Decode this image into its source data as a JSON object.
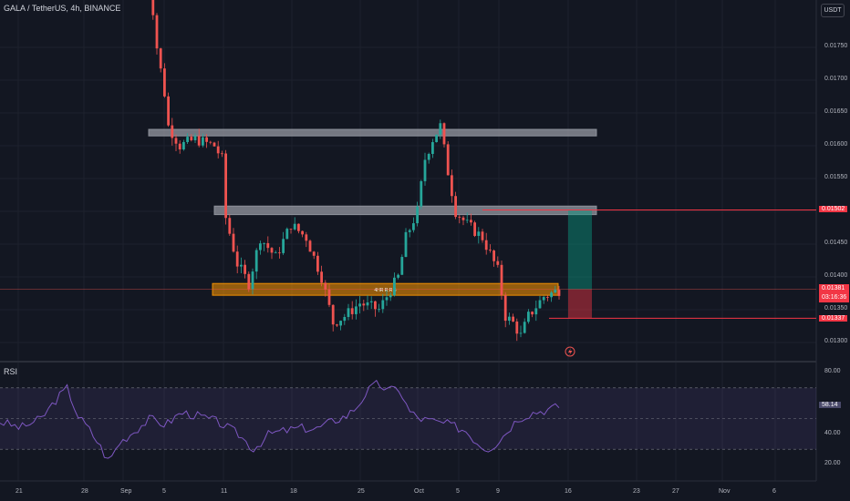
{
  "symbol": {
    "title": "GALA / TetherUS, 4h, BINANCE"
  },
  "quote_currency": "USDT",
  "indicator": {
    "name": "RSI"
  },
  "zone_label": "4HR R:R 5",
  "price_axis": {
    "ticks": [
      "0.01750",
      "0.01700",
      "0.01650",
      "0.01600",
      "0.01550",
      "0.01450",
      "0.01400",
      "0.01350",
      "0.01300"
    ],
    "tag_target": "0.01502",
    "tag_current": "0.01381",
    "tag_countdown": "03:16:36",
    "tag_stop": "0.01337"
  },
  "rsi_axis": {
    "ticks": [
      "80.00",
      "40.00",
      "20.00"
    ],
    "current": "58.14",
    "upper_band": 70,
    "lower_band": 30
  },
  "time_axis": {
    "labels": [
      "21",
      "28",
      "Sep",
      "5",
      "11",
      "18",
      "25",
      "Oct",
      "5",
      "9",
      "16",
      "23",
      "27",
      "Nov",
      "6"
    ]
  },
  "colors": {
    "background": "#131722",
    "candle_up": "#26a69a",
    "candle_down": "#ef5350",
    "rsi_line": "#7e57c2",
    "zone_gray": "#9598a1",
    "zone_orange": "#ff9800",
    "target_line": "#f23645",
    "profit_zone": "#089981",
    "loss_zone": "#f23645"
  },
  "icons": {
    "alert": "lightning-icon"
  },
  "chart_data": {
    "type": "candlestick",
    "title": "GALA / TetherUS, 4h, BINANCE",
    "xlabel": "",
    "ylabel": "",
    "ylim": [
      0.0128,
      0.0182
    ],
    "x_labels": [
      "21",
      "28",
      "Sep",
      "5",
      "11",
      "18",
      "25",
      "Oct",
      "5",
      "9",
      "16",
      "23",
      "27",
      "Nov",
      "6"
    ],
    "close_path": [
      [
        0,
        0.0192
      ],
      [
        3,
        0.0175
      ],
      [
        5,
        0.0168
      ],
      [
        6,
        0.0163
      ],
      [
        9,
        0.016
      ],
      [
        13,
        0.0161
      ],
      [
        18,
        0.016
      ],
      [
        20,
        0.0158
      ],
      [
        21,
        0.0149
      ],
      [
        24,
        0.0142
      ],
      [
        27,
        0.0139
      ],
      [
        30,
        0.0146
      ],
      [
        34,
        0.0143
      ],
      [
        38,
        0.0148
      ],
      [
        42,
        0.0146
      ],
      [
        46,
        0.014
      ],
      [
        49,
        0.0133
      ],
      [
        52,
        0.0134
      ],
      [
        56,
        0.0136
      ],
      [
        61,
        0.0135
      ],
      [
        66,
        0.014
      ],
      [
        68,
        0.0146
      ],
      [
        71,
        0.015
      ],
      [
        73,
        0.0158
      ],
      [
        75,
        0.0161
      ],
      [
        77,
        0.0163
      ],
      [
        79,
        0.0156
      ],
      [
        81,
        0.015
      ],
      [
        84,
        0.0148
      ],
      [
        88,
        0.0146
      ],
      [
        92,
        0.0141
      ],
      [
        94,
        0.0134
      ],
      [
        96,
        0.0133
      ],
      [
        98,
        0.0131
      ],
      [
        100,
        0.0134
      ],
      [
        104,
        0.0137
      ],
      [
        108,
        0.0138
      ]
    ],
    "horizontal_zones": [
      {
        "label": "",
        "low": 0.01615,
        "high": 0.01625,
        "color": "gray"
      },
      {
        "label": "",
        "low": 0.01495,
        "high": 0.01508,
        "color": "gray"
      },
      {
        "label": "4HR R:R 5",
        "low": 0.01372,
        "high": 0.0139,
        "color": "orange"
      }
    ],
    "position": {
      "entry": 0.01381,
      "target": 0.01502,
      "stop": 0.01337
    },
    "rsi": {
      "ylim": [
        15,
        85
      ],
      "bands": [
        70,
        50,
        30
      ],
      "current": 58.14,
      "path": [
        [
          0,
          48
        ],
        [
          4,
          44
        ],
        [
          8,
          50
        ],
        [
          11,
          63
        ],
        [
          13,
          70
        ],
        [
          15,
          52
        ],
        [
          17,
          44
        ],
        [
          19,
          34
        ],
        [
          21,
          22
        ],
        [
          23,
          34
        ],
        [
          26,
          42
        ],
        [
          29,
          50
        ],
        [
          32,
          46
        ],
        [
          35,
          54
        ],
        [
          38,
          52
        ],
        [
          42,
          48
        ],
        [
          46,
          40
        ],
        [
          49,
          30
        ],
        [
          52,
          40
        ],
        [
          55,
          42
        ],
        [
          58,
          44
        ],
        [
          61,
          43
        ],
        [
          64,
          48
        ],
        [
          67,
          52
        ],
        [
          69,
          58
        ],
        [
          71,
          68
        ],
        [
          73,
          73
        ],
        [
          75,
          68
        ],
        [
          77,
          70
        ],
        [
          79,
          55
        ],
        [
          81,
          50
        ],
        [
          84,
          48
        ],
        [
          87,
          46
        ],
        [
          90,
          42
        ],
        [
          92,
          35
        ],
        [
          94,
          30
        ],
        [
          96,
          34
        ],
        [
          98,
          42
        ],
        [
          100,
          50
        ],
        [
          103,
          54
        ],
        [
          106,
          56
        ],
        [
          108,
          58
        ]
      ]
    }
  }
}
